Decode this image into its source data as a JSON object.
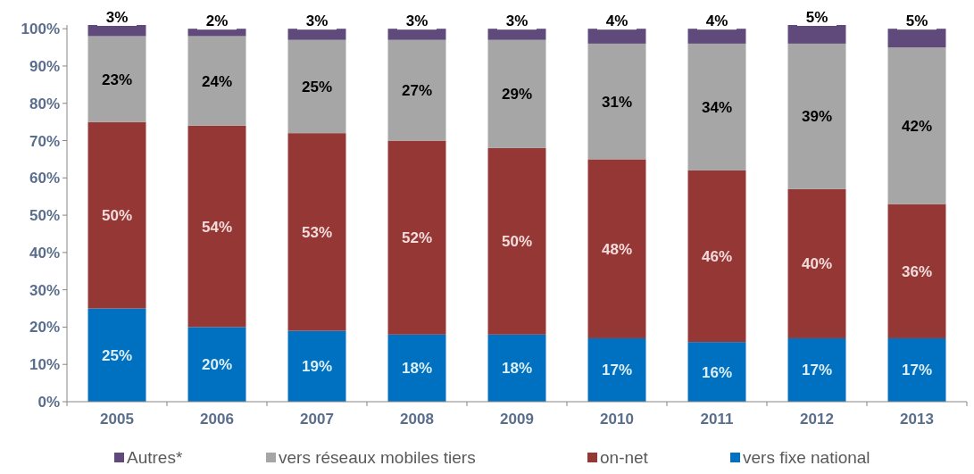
{
  "chart_data": {
    "type": "bar",
    "stacked": true,
    "categories": [
      "2005",
      "2006",
      "2007",
      "2008",
      "2009",
      "2010",
      "2011",
      "2012",
      "2013"
    ],
    "series": [
      {
        "name": "vers fixe national",
        "color": "#0070c0",
        "values": [
          25,
          20,
          19,
          18,
          18,
          17,
          16,
          17,
          17
        ],
        "value_labels": [
          "25%",
          "20%",
          "19%",
          "18%",
          "18%",
          "17%",
          "16%",
          "17%",
          "17%"
        ]
      },
      {
        "name": "on-net",
        "color": "#953735",
        "values": [
          50,
          54,
          53,
          52,
          50,
          48,
          46,
          40,
          36
        ],
        "value_labels": [
          "50%",
          "54%",
          "53%",
          "52%",
          "50%",
          "48%",
          "46%",
          "40%",
          "36%"
        ]
      },
      {
        "name": "vers réseaux mobiles tiers",
        "color": "#a6a6a6",
        "values": [
          23,
          24,
          25,
          27,
          29,
          31,
          34,
          39,
          42
        ],
        "value_labels": [
          "23%",
          "24%",
          "25%",
          "27%",
          "29%",
          "31%",
          "34%",
          "39%",
          "42%"
        ]
      },
      {
        "name": "Autres*",
        "color": "#604a7b",
        "values": [
          3,
          2,
          3,
          3,
          3,
          4,
          4,
          5,
          5
        ],
        "value_labels": [
          "3%",
          "2%",
          "3%",
          "3%",
          "3%",
          "4%",
          "4%",
          "5%",
          "5%"
        ]
      }
    ],
    "ylim": [
      0,
      101
    ],
    "yticks": [
      {
        "value": 0,
        "label": "0%"
      },
      {
        "value": 10,
        "label": "10%"
      },
      {
        "value": 20,
        "label": "20%"
      },
      {
        "value": 30,
        "label": "30%"
      },
      {
        "value": 40,
        "label": "40%"
      },
      {
        "value": 50,
        "label": "50%"
      },
      {
        "value": 60,
        "label": "60%"
      },
      {
        "value": 70,
        "label": "70%"
      },
      {
        "value": 80,
        "label": "80%"
      },
      {
        "value": 90,
        "label": "90%"
      },
      {
        "value": 100,
        "label": "100%"
      }
    ],
    "legend": "bottom",
    "grid": false
  }
}
